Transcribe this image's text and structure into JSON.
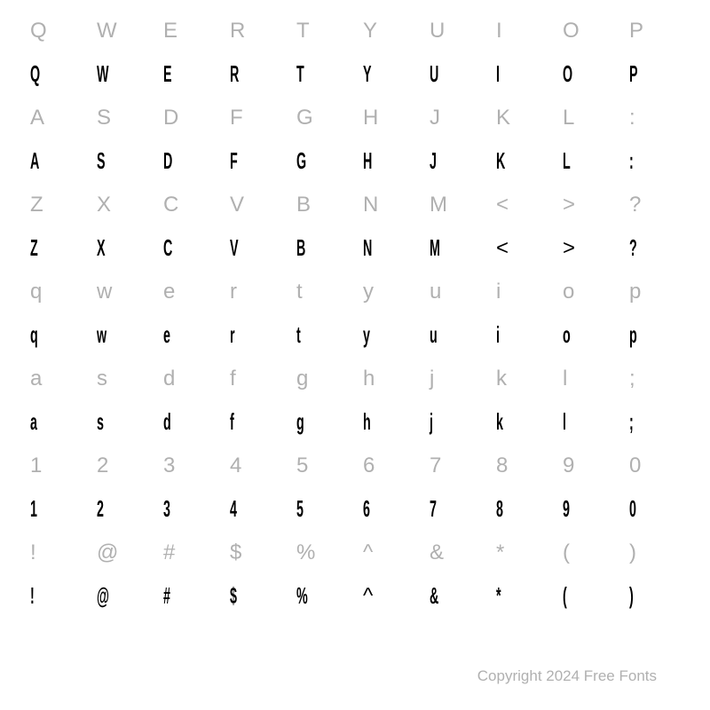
{
  "chart": {
    "type": "table",
    "columns": 10,
    "background_color": "#ffffff",
    "ref_color": "#b0b0b0",
    "glyph_color": "#000000",
    "ref_fontsize": 24,
    "glyph_fontsize": 26,
    "rows": [
      {
        "kind": "ref",
        "chars": [
          "Q",
          "W",
          "E",
          "R",
          "T",
          "Y",
          "U",
          "I",
          "O",
          "P"
        ]
      },
      {
        "kind": "glyph",
        "chars": [
          "Q",
          "W",
          "E",
          "R",
          "T",
          "Y",
          "U",
          "I",
          "O",
          "P"
        ]
      },
      {
        "kind": "ref",
        "chars": [
          "A",
          "S",
          "D",
          "F",
          "G",
          "H",
          "J",
          "K",
          "L",
          ":"
        ]
      },
      {
        "kind": "glyph",
        "chars": [
          "A",
          "S",
          "D",
          "F",
          "G",
          "H",
          "J",
          "K",
          "L",
          ":"
        ]
      },
      {
        "kind": "ref",
        "chars": [
          "Z",
          "X",
          "C",
          "V",
          "B",
          "N",
          "M",
          "<",
          ">",
          "?"
        ]
      },
      {
        "kind": "glyph",
        "chars": [
          "Z",
          "X",
          "C",
          "V",
          "B",
          "N",
          "M",
          "<",
          ">",
          "?"
        ]
      },
      {
        "kind": "ref",
        "chars": [
          "q",
          "w",
          "e",
          "r",
          "t",
          "y",
          "u",
          "i",
          "o",
          "p"
        ]
      },
      {
        "kind": "glyph",
        "chars": [
          "q",
          "w",
          "e",
          "r",
          "t",
          "y",
          "u",
          "i",
          "o",
          "p"
        ]
      },
      {
        "kind": "ref",
        "chars": [
          "a",
          "s",
          "d",
          "f",
          "g",
          "h",
          "j",
          "k",
          "l",
          ";"
        ]
      },
      {
        "kind": "glyph",
        "chars": [
          "a",
          "s",
          "d",
          "f",
          "g",
          "h",
          "j",
          "k",
          "l",
          ";"
        ]
      },
      {
        "kind": "ref",
        "chars": [
          "1",
          "2",
          "3",
          "4",
          "5",
          "6",
          "7",
          "8",
          "9",
          "0"
        ]
      },
      {
        "kind": "glyph",
        "chars": [
          "1",
          "2",
          "3",
          "4",
          "5",
          "6",
          "7",
          "8",
          "9",
          "0"
        ]
      },
      {
        "kind": "ref",
        "chars": [
          "!",
          "@",
          "#",
          "$",
          "%",
          "^",
          "&",
          "*",
          "(",
          ")"
        ]
      },
      {
        "kind": "glyph",
        "chars": [
          "!",
          "@",
          "#",
          "$",
          "%",
          "^",
          "&",
          "*",
          "(",
          ")"
        ]
      }
    ],
    "nosquish_chars": [
      "<",
      ">",
      "^"
    ]
  },
  "copyright": "Copyright 2024 Free Fonts"
}
